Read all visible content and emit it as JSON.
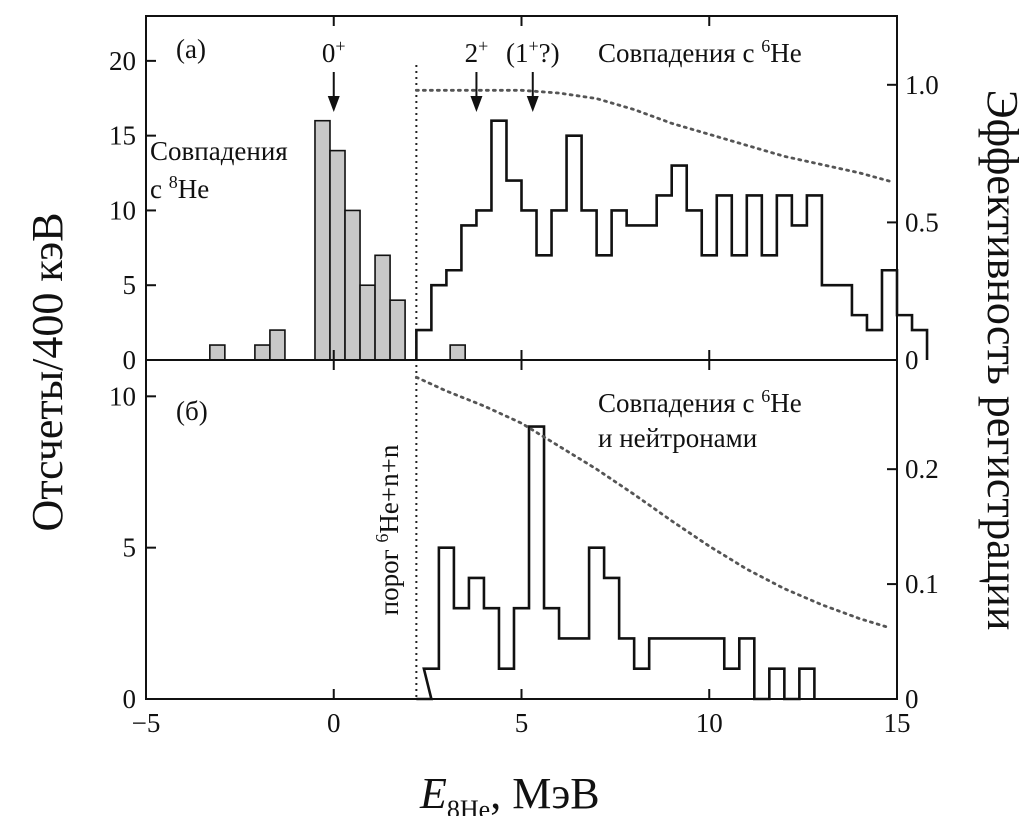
{
  "chart_data": {
    "type": "bar",
    "xlabel": "E",
    "xlabel_sub": "8He",
    "xlabel_unit": ", МэВ",
    "ylabel_left": "Отсчеты/400 кэВ",
    "ylabel_right": "Эффективность регистрации",
    "x_range": [
      -5,
      15
    ],
    "x_ticks": [
      -5,
      0,
      5,
      10,
      15
    ],
    "threshold_x": 2.2,
    "threshold_label_prefix": "порог ",
    "threshold_label_sup": "6",
    "threshold_label_suffix": "He+n+n",
    "bin_width": 0.4,
    "panels": [
      {
        "label": "(а)",
        "y_range": [
          0,
          23
        ],
        "y_ticks": [
          0,
          5,
          10,
          15,
          20
        ],
        "eff_range": [
          0,
          1.25
        ],
        "eff_ticks": [
          0,
          0.5,
          1.0
        ],
        "eff_tick_labels": [
          "0",
          "0.5",
          "1.0"
        ],
        "legend_line1_prefix": "Совпадения с ",
        "legend_line1_sup": "6",
        "legend_line1_suffix": "He",
        "legend_line2": "",
        "shaded_text_line1": "Совпадения",
        "shaded_text_line2_prefix": "с ",
        "shaded_text_line2_sup": "8",
        "shaded_text_line2_suffix": "He",
        "series": [
          {
            "name": "Совпадения с 8He",
            "style": "filled",
            "bins": [
              [
                -3.3,
                1
              ],
              [
                -2.9,
                0
              ],
              [
                -2.1,
                1
              ],
              [
                -1.7,
                2
              ],
              [
                -1.3,
                0
              ],
              [
                -0.5,
                16
              ],
              [
                -0.1,
                14
              ],
              [
                0.3,
                10
              ],
              [
                0.7,
                5
              ],
              [
                1.1,
                7
              ],
              [
                1.5,
                4
              ],
              [
                1.9,
                0
              ],
              [
                3.1,
                1
              ]
            ]
          },
          {
            "name": "Совпадения с 6He",
            "style": "step",
            "bins": [
              [
                2.2,
                2
              ],
              [
                2.6,
                5
              ],
              [
                3.0,
                6
              ],
              [
                3.4,
                9
              ],
              [
                3.8,
                10
              ],
              [
                4.2,
                16
              ],
              [
                4.6,
                12
              ],
              [
                5.0,
                10
              ],
              [
                5.4,
                7
              ],
              [
                5.8,
                10
              ],
              [
                6.2,
                15
              ],
              [
                6.6,
                10
              ],
              [
                7.0,
                7
              ],
              [
                7.4,
                10
              ],
              [
                7.8,
                9
              ],
              [
                8.2,
                9
              ],
              [
                8.6,
                11
              ],
              [
                9.0,
                13
              ],
              [
                9.4,
                10
              ],
              [
                9.8,
                7
              ],
              [
                10.2,
                11
              ],
              [
                10.6,
                7
              ],
              [
                11.0,
                11
              ],
              [
                11.4,
                7
              ],
              [
                11.8,
                11
              ],
              [
                12.2,
                9
              ],
              [
                12.6,
                11
              ],
              [
                13.0,
                5
              ],
              [
                13.4,
                5
              ],
              [
                13.8,
                3
              ],
              [
                14.2,
                2
              ],
              [
                14.6,
                6
              ],
              [
                15.0,
                3
              ],
              [
                15.4,
                2
              ]
            ]
          }
        ],
        "efficiency": {
          "x": [
            2.2,
            3.0,
            4.0,
            5.0,
            6.0,
            7.0,
            8.0,
            9.0,
            10.0,
            11.0,
            12.0,
            13.0,
            14.0,
            14.8
          ],
          "y": [
            0.98,
            0.98,
            0.98,
            0.98,
            0.97,
            0.95,
            0.91,
            0.86,
            0.82,
            0.78,
            0.74,
            0.71,
            0.68,
            0.65
          ]
        },
        "peak_markers": [
          {
            "x": 0.0,
            "base": "0",
            "sup": "+",
            "pre": "",
            "post": ""
          },
          {
            "x": 3.8,
            "base": "2",
            "sup": "+",
            "pre": "",
            "post": ""
          },
          {
            "x": 5.3,
            "base": "1",
            "sup": "+",
            "pre": "(",
            "post": "?)"
          }
        ]
      },
      {
        "label": "(б)",
        "y_range": [
          0,
          11.2
        ],
        "y_ticks": [
          0,
          5,
          10
        ],
        "eff_range": [
          0,
          0.295
        ],
        "eff_ticks": [
          0,
          0.1,
          0.2
        ],
        "eff_tick_labels": [
          "0",
          "0.1",
          "0.2"
        ],
        "legend_line1_prefix": "Совпадения с ",
        "legend_line1_sup": "6",
        "legend_line1_suffix": "He",
        "legend_line2": "и нейтронами",
        "series": [
          {
            "name": "Совпадения с 6He и нейтронами",
            "style": "step",
            "bins": [
              [
                2.2,
                0
              ],
              [
                2.4,
                1
              ],
              [
                2.8,
                5
              ],
              [
                3.2,
                3
              ],
              [
                3.6,
                4
              ],
              [
                4.0,
                3
              ],
              [
                4.4,
                1
              ],
              [
                4.8,
                3
              ],
              [
                5.2,
                9
              ],
              [
                5.6,
                3
              ],
              [
                6.0,
                2
              ],
              [
                6.4,
                2
              ],
              [
                6.8,
                5
              ],
              [
                7.2,
                4
              ],
              [
                7.6,
                2
              ],
              [
                8.0,
                1
              ],
              [
                8.4,
                2
              ],
              [
                8.8,
                2
              ],
              [
                9.2,
                2
              ],
              [
                9.6,
                2
              ],
              [
                10.0,
                2
              ],
              [
                10.4,
                1
              ],
              [
                10.8,
                2
              ],
              [
                11.2,
                0
              ],
              [
                11.6,
                1
              ],
              [
                12.0,
                0
              ],
              [
                12.4,
                1
              ]
            ]
          }
        ],
        "efficiency": {
          "x": [
            2.2,
            3.0,
            4.0,
            5.0,
            6.0,
            7.0,
            8.0,
            9.0,
            10.0,
            11.0,
            12.0,
            13.0,
            14.0,
            14.8
          ],
          "y": [
            0.28,
            0.268,
            0.255,
            0.24,
            0.22,
            0.2,
            0.178,
            0.155,
            0.133,
            0.113,
            0.096,
            0.082,
            0.07,
            0.062
          ]
        }
      }
    ]
  }
}
